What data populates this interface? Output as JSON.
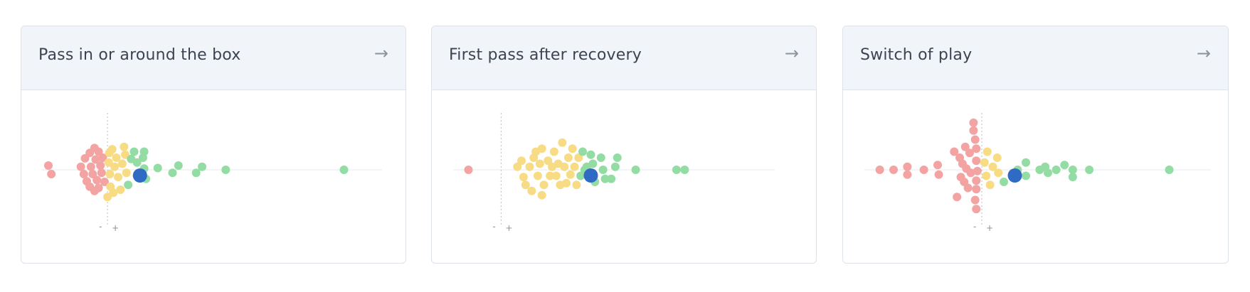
{
  "colors": {
    "low": "#f4a3a3",
    "mid": "#f8dc85",
    "high": "#93dda4",
    "player": "#2f6bc4",
    "axis": "#e6e8ec",
    "zero": "#b8bec6"
  },
  "icons": {
    "open": "arrow-right-icon"
  },
  "cards": [
    {
      "title": "Pass in or around the box",
      "arrow": "→"
    },
    {
      "title": "First pass after recovery",
      "arrow": "→"
    },
    {
      "title": "Switch of play",
      "arrow": "→"
    }
  ],
  "axis_labels": {
    "minus": "-",
    "plus": "+"
  },
  "chart_data": [
    {
      "type": "scatter",
      "title": "Pass in or around the box",
      "xlim": [
        -1,
        4.5
      ],
      "zero": 0,
      "player": 0.55,
      "points": [
        {
          "x": -1.0,
          "y": 0.07
        },
        {
          "x": -0.95,
          "y": -0.07
        },
        {
          "x": -0.45,
          "y": 0.05
        },
        {
          "x": -0.4,
          "y": -0.07
        },
        {
          "x": -0.38,
          "y": 0.19
        },
        {
          "x": -0.35,
          "y": -0.19
        },
        {
          "x": -0.3,
          "y": 0.28
        },
        {
          "x": -0.3,
          "y": -0.28
        },
        {
          "x": -0.28,
          "y": 0.05
        },
        {
          "x": -0.25,
          "y": -0.07
        },
        {
          "x": -0.22,
          "y": 0.36
        },
        {
          "x": -0.22,
          "y": -0.35
        },
        {
          "x": -0.2,
          "y": 0.17
        },
        {
          "x": -0.18,
          "y": -0.17
        },
        {
          "x": -0.15,
          "y": 0.3
        },
        {
          "x": -0.15,
          "y": -0.3
        },
        {
          "x": -0.12,
          "y": 0.07
        },
        {
          "x": -0.1,
          "y": -0.05
        },
        {
          "x": -0.08,
          "y": 0.2
        },
        {
          "x": -0.05,
          "y": -0.2
        },
        {
          "x": 0.0,
          "y": -0.45
        },
        {
          "x": 0.02,
          "y": 0.12
        },
        {
          "x": 0.03,
          "y": 0.28
        },
        {
          "x": 0.04,
          "y": -0.07
        },
        {
          "x": 0.05,
          "y": -0.28
        },
        {
          "x": 0.08,
          "y": 0.34
        },
        {
          "x": 0.1,
          "y": -0.38
        },
        {
          "x": 0.12,
          "y": 0.05
        },
        {
          "x": 0.15,
          "y": 0.2
        },
        {
          "x": 0.18,
          "y": -0.12
        },
        {
          "x": 0.22,
          "y": -0.33
        },
        {
          "x": 0.25,
          "y": 0.1
        },
        {
          "x": 0.28,
          "y": 0.38
        },
        {
          "x": 0.3,
          "y": 0.25
        },
        {
          "x": 0.32,
          "y": -0.05
        },
        {
          "x": 0.35,
          "y": -0.25
        },
        {
          "x": 0.4,
          "y": 0.18
        },
        {
          "x": 0.45,
          "y": 0.3
        },
        {
          "x": 0.5,
          "y": 0.12
        },
        {
          "x": 0.5,
          "y": -0.1
        },
        {
          "x": 0.6,
          "y": 0.2
        },
        {
          "x": 0.62,
          "y": 0.3
        },
        {
          "x": 0.62,
          "y": 0.02
        },
        {
          "x": 0.65,
          "y": -0.15
        },
        {
          "x": 0.85,
          "y": 0.03
        },
        {
          "x": 1.1,
          "y": -0.05
        },
        {
          "x": 1.2,
          "y": 0.07
        },
        {
          "x": 1.5,
          "y": -0.05
        },
        {
          "x": 1.6,
          "y": 0.05
        },
        {
          "x": 2.0,
          "y": 0.0
        },
        {
          "x": 4.0,
          "y": 0.0
        }
      ]
    },
    {
      "type": "scatter",
      "title": "First pass after recovery",
      "xlim": [
        -1,
        6.5
      ],
      "zero": 0,
      "player": 2.2,
      "points": [
        {
          "x": -0.8,
          "y": 0.0
        },
        {
          "x": 0.4,
          "y": 0.05
        },
        {
          "x": 0.5,
          "y": 0.15
        },
        {
          "x": 0.55,
          "y": -0.12
        },
        {
          "x": 0.6,
          "y": -0.25
        },
        {
          "x": 0.7,
          "y": 0.05
        },
        {
          "x": 0.75,
          "y": -0.35
        },
        {
          "x": 0.8,
          "y": 0.2
        },
        {
          "x": 0.85,
          "y": 0.3
        },
        {
          "x": 0.9,
          "y": -0.1
        },
        {
          "x": 0.95,
          "y": 0.1
        },
        {
          "x": 1.0,
          "y": -0.42
        },
        {
          "x": 1.0,
          "y": 0.35
        },
        {
          "x": 1.05,
          "y": -0.25
        },
        {
          "x": 1.15,
          "y": 0.15
        },
        {
          "x": 1.2,
          "y": -0.1
        },
        {
          "x": 1.25,
          "y": 0.05
        },
        {
          "x": 1.3,
          "y": 0.3
        },
        {
          "x": 1.35,
          "y": -0.1
        },
        {
          "x": 1.4,
          "y": 0.1
        },
        {
          "x": 1.45,
          "y": -0.25
        },
        {
          "x": 1.5,
          "y": 0.45
        },
        {
          "x": 1.55,
          "y": 0.05
        },
        {
          "x": 1.6,
          "y": -0.22
        },
        {
          "x": 1.65,
          "y": 0.2
        },
        {
          "x": 1.7,
          "y": -0.08
        },
        {
          "x": 1.75,
          "y": 0.35
        },
        {
          "x": 1.8,
          "y": 0.05
        },
        {
          "x": 1.85,
          "y": -0.25
        },
        {
          "x": 1.9,
          "y": 0.2
        },
        {
          "x": 1.95,
          "y": -0.1
        },
        {
          "x": 2.0,
          "y": 0.3
        },
        {
          "x": 2.1,
          "y": 0.05
        },
        {
          "x": 2.15,
          "y": -0.1
        },
        {
          "x": 2.05,
          "y": 0.0
        },
        {
          "x": 2.2,
          "y": 0.25
        },
        {
          "x": 2.25,
          "y": 0.1
        },
        {
          "x": 2.3,
          "y": -0.2
        },
        {
          "x": 2.45,
          "y": 0.2
        },
        {
          "x": 2.5,
          "y": 0.0
        },
        {
          "x": 2.55,
          "y": -0.15
        },
        {
          "x": 2.7,
          "y": -0.15
        },
        {
          "x": 2.8,
          "y": 0.05
        },
        {
          "x": 2.85,
          "y": 0.2
        },
        {
          "x": 3.3,
          "y": 0.0
        },
        {
          "x": 4.3,
          "y": 0.0
        },
        {
          "x": 4.5,
          "y": 0.0
        }
      ]
    },
    {
      "type": "scatter",
      "title": "Switch of play",
      "xlim": [
        -2,
        4
      ],
      "zero": 0,
      "player": 0.6,
      "points": [
        {
          "x": -1.85,
          "y": 0.0
        },
        {
          "x": -1.6,
          "y": 0.0
        },
        {
          "x": -1.35,
          "y": 0.05
        },
        {
          "x": -1.35,
          "y": -0.08
        },
        {
          "x": -1.05,
          "y": 0.0
        },
        {
          "x": -0.8,
          "y": 0.08
        },
        {
          "x": -0.78,
          "y": -0.08
        },
        {
          "x": -0.5,
          "y": 0.3
        },
        {
          "x": -0.45,
          "y": -0.45
        },
        {
          "x": -0.4,
          "y": 0.2
        },
        {
          "x": -0.38,
          "y": -0.12
        },
        {
          "x": -0.35,
          "y": 0.1
        },
        {
          "x": -0.32,
          "y": -0.2
        },
        {
          "x": -0.3,
          "y": 0.38
        },
        {
          "x": -0.28,
          "y": 0.02
        },
        {
          "x": -0.25,
          "y": -0.3
        },
        {
          "x": -0.22,
          "y": 0.28
        },
        {
          "x": -0.2,
          "y": -0.05
        },
        {
          "x": -0.15,
          "y": 0.78
        },
        {
          "x": -0.15,
          "y": 0.65
        },
        {
          "x": -0.12,
          "y": 0.5
        },
        {
          "x": -0.1,
          "y": 0.35
        },
        {
          "x": -0.1,
          "y": 0.15
        },
        {
          "x": -0.08,
          "y": -0.02
        },
        {
          "x": -0.1,
          "y": -0.18
        },
        {
          "x": -0.1,
          "y": -0.32
        },
        {
          "x": -0.12,
          "y": -0.5
        },
        {
          "x": -0.1,
          "y": -0.65
        },
        {
          "x": 0.05,
          "y": 0.12
        },
        {
          "x": 0.08,
          "y": -0.1
        },
        {
          "x": 0.1,
          "y": 0.3
        },
        {
          "x": 0.15,
          "y": -0.25
        },
        {
          "x": 0.2,
          "y": 0.05
        },
        {
          "x": 0.28,
          "y": 0.2
        },
        {
          "x": 0.3,
          "y": -0.05
        },
        {
          "x": 0.4,
          "y": -0.2
        },
        {
          "x": 0.65,
          "y": 0.0
        },
        {
          "x": 0.8,
          "y": 0.12
        },
        {
          "x": 0.8,
          "y": -0.1
        },
        {
          "x": 1.05,
          "y": 0.0
        },
        {
          "x": 1.15,
          "y": 0.05
        },
        {
          "x": 1.2,
          "y": -0.05
        },
        {
          "x": 1.35,
          "y": 0.0
        },
        {
          "x": 1.5,
          "y": 0.08
        },
        {
          "x": 1.65,
          "y": 0.0
        },
        {
          "x": 1.65,
          "y": -0.12
        },
        {
          "x": 1.95,
          "y": 0.0
        },
        {
          "x": 3.4,
          "y": 0.0
        }
      ]
    }
  ]
}
